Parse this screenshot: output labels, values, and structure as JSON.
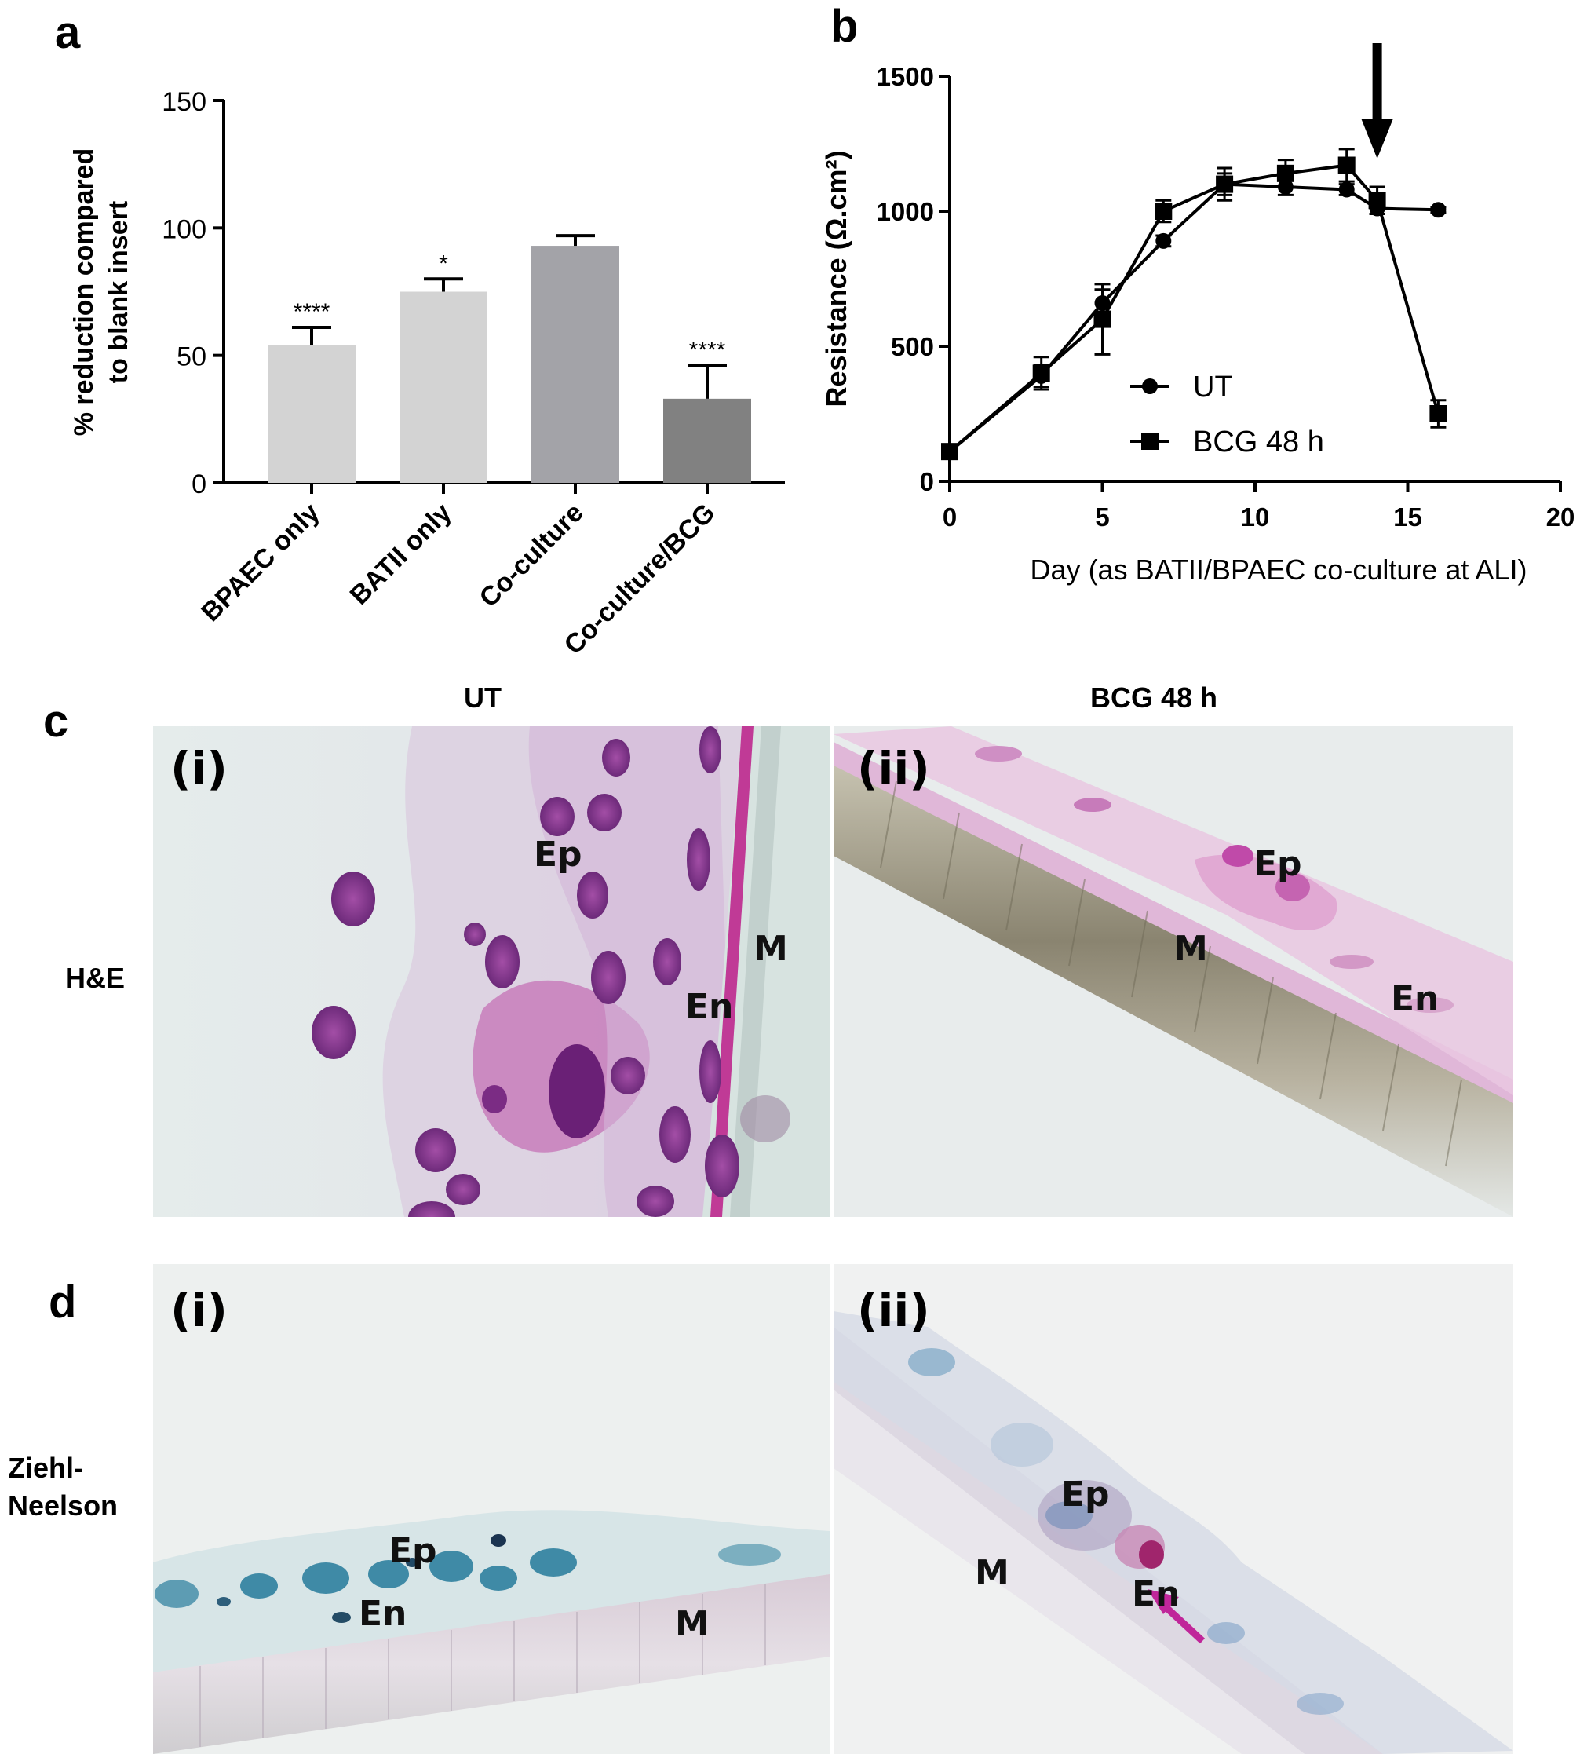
{
  "panels": {
    "a": "a",
    "b": "b",
    "c": "c",
    "d": "d"
  },
  "chart_data": [
    {
      "type": "bar",
      "panel": "a",
      "ylabel_lines": [
        "% reduction compared",
        "to blank insert"
      ],
      "categories": [
        "BPAEC only",
        "BATII only",
        "Co-culture",
        "Co-culture/BCG"
      ],
      "values": [
        54,
        75,
        93,
        33
      ],
      "errors": [
        7,
        5,
        4,
        13
      ],
      "significance": [
        "****",
        "*",
        "",
        "****"
      ],
      "bar_colors": [
        "#d3d3d3",
        "#d3d3d3",
        "#a3a3a8",
        "#818181"
      ],
      "ylim": [
        0,
        150
      ],
      "yticks": [
        0,
        50,
        100,
        150
      ]
    },
    {
      "type": "line",
      "panel": "b",
      "xlabel": "Day (as BATII/BPAEC co-culture at ALI)",
      "ylabel": "Resistance (Ω.cm²)",
      "xlim": [
        0,
        20
      ],
      "ylim": [
        0,
        1500
      ],
      "xticks": [
        0,
        5,
        10,
        15,
        20
      ],
      "yticks": [
        0,
        500,
        1000,
        1500
      ],
      "legend_position": "center",
      "series": [
        {
          "name": "UT",
          "marker": "circle",
          "x": [
            0,
            3,
            5,
            7,
            9,
            11,
            13,
            14,
            16
          ],
          "y": [
            110,
            390,
            660,
            890,
            1100,
            1090,
            1080,
            1010,
            1005
          ],
          "err": [
            20,
            40,
            50,
            20,
            40,
            30,
            20,
            20,
            10
          ]
        },
        {
          "name": "BCG 48 h",
          "marker": "square",
          "x": [
            0,
            3,
            5,
            7,
            9,
            11,
            13,
            14,
            16
          ],
          "y": [
            110,
            400,
            600,
            1000,
            1100,
            1140,
            1170,
            1040,
            250
          ],
          "err": [
            20,
            60,
            130,
            40,
            60,
            50,
            60,
            50,
            50
          ]
        }
      ],
      "arrow_at_x": 14
    }
  ],
  "figure": {
    "col_titles": [
      "UT",
      "BCG 48 h"
    ],
    "row_labels": {
      "c": [
        "H&E"
      ],
      "d": [
        "Ziehl-",
        "Neelson"
      ]
    },
    "micrographs": [
      {
        "id": "c-i",
        "roman": "(i)",
        "labels": [
          "Ep",
          "En",
          "M"
        ]
      },
      {
        "id": "c-ii",
        "roman": "(ii)",
        "labels": [
          "Ep",
          "M",
          "En"
        ]
      },
      {
        "id": "d-i",
        "roman": "(i)",
        "labels": [
          "Ep",
          "En",
          "M"
        ]
      },
      {
        "id": "d-ii",
        "roman": "(ii)",
        "labels": [
          "Ep",
          "M",
          "En"
        ]
      }
    ]
  }
}
